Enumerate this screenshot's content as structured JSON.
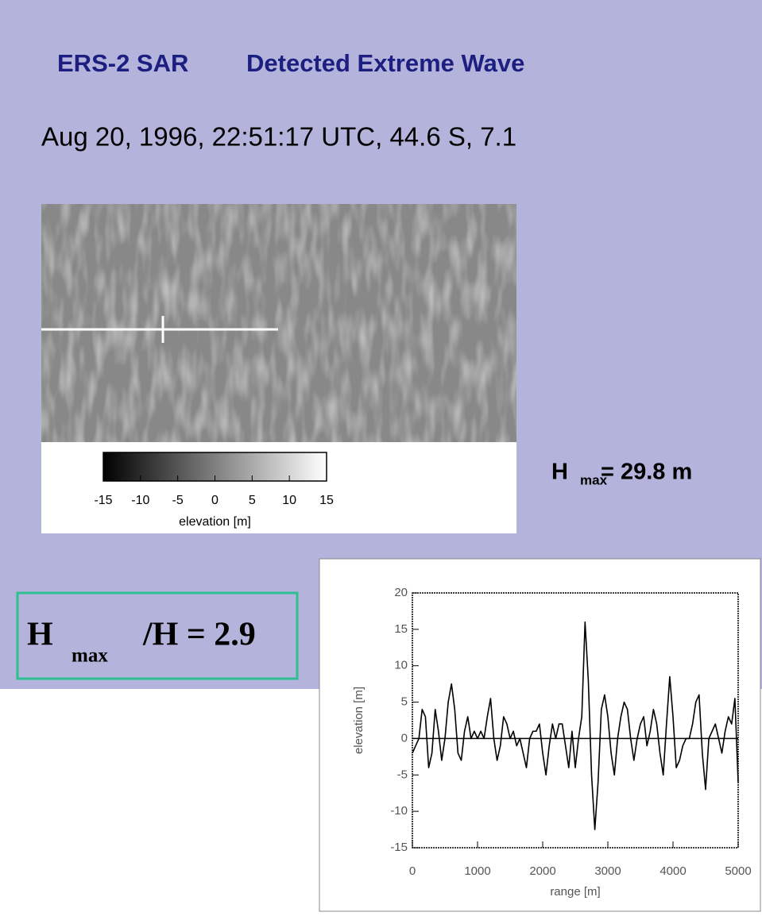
{
  "slide": {
    "title_left": "ERS-2 SAR",
    "title_right": "Detected Extreme Wave",
    "subtitle": "Aug 20, 1996, 22:51:17 UTC, 44.6  S, 7.1",
    "hmax_h": "H",
    "hmax_sub": "max",
    "hmax_value": "= 29.8 m",
    "ratio_h": "H",
    "ratio_sub": "max",
    "ratio_value": "/H = 2.9"
  },
  "chart_data": [
    {
      "type": "colorbar",
      "xlabel": "elevation [m]",
      "xlim": [
        -15,
        15
      ],
      "xticks": [
        -15,
        -10,
        -5,
        0,
        5,
        10,
        15
      ],
      "colors": [
        "#000000",
        "#ffffff"
      ]
    },
    {
      "type": "line",
      "xlabel": "range [m]",
      "ylabel": "elevation [m]",
      "xlim": [
        0,
        5000
      ],
      "ylim": [
        -15,
        20
      ],
      "xticks": [
        0,
        1000,
        2000,
        3000,
        4000,
        5000
      ],
      "yticks": [
        -15,
        -10,
        -5,
        0,
        5,
        10,
        15,
        20
      ],
      "reference_line": 0,
      "x": [
        0,
        50,
        100,
        150,
        200,
        250,
        300,
        350,
        400,
        450,
        500,
        550,
        600,
        650,
        700,
        750,
        800,
        850,
        900,
        950,
        1000,
        1050,
        1100,
        1150,
        1200,
        1250,
        1300,
        1350,
        1400,
        1450,
        1500,
        1550,
        1600,
        1650,
        1700,
        1750,
        1800,
        1850,
        1900,
        1950,
        2000,
        2050,
        2100,
        2150,
        2200,
        2250,
        2300,
        2350,
        2400,
        2450,
        2500,
        2550,
        2600,
        2650,
        2700,
        2750,
        2800,
        2850,
        2900,
        2950,
        3000,
        3050,
        3100,
        3150,
        3200,
        3250,
        3300,
        3350,
        3400,
        3450,
        3500,
        3550,
        3600,
        3650,
        3700,
        3750,
        3800,
        3850,
        3900,
        3950,
        4000,
        4050,
        4100,
        4150,
        4200,
        4250,
        4300,
        4350,
        4400,
        4450,
        4500,
        4550,
        4600,
        4650,
        4700,
        4750,
        4800,
        4850,
        4900,
        4950,
        5000
      ],
      "series": [
        {
          "name": "elevation",
          "color": "#000000",
          "values": [
            -2,
            -1,
            0,
            4,
            3,
            -4,
            -2,
            4,
            1,
            -3,
            0,
            5,
            7.5,
            4,
            -2,
            -3,
            1,
            3,
            0,
            1,
            0,
            1,
            0,
            3,
            5.5,
            0,
            -3,
            -1,
            3,
            2,
            0,
            1,
            -1,
            0,
            -2,
            -4,
            0,
            1,
            1,
            2,
            -2,
            -5,
            -1,
            2,
            0,
            2,
            2,
            -1,
            -4,
            1,
            -4,
            0,
            3,
            16,
            8,
            -5,
            -12.5,
            -6,
            4,
            6,
            3,
            -2,
            -5,
            0,
            3,
            5,
            4,
            0,
            -3,
            0,
            2,
            3,
            -1,
            1,
            4,
            2,
            -2,
            -5,
            2,
            8.5,
            3,
            -4,
            -3,
            -1,
            0,
            0,
            2,
            5,
            6,
            -2,
            -7,
            0,
            1,
            2,
            0,
            -2,
            1,
            3,
            2,
            5.5,
            -6
          ]
        }
      ]
    }
  ]
}
